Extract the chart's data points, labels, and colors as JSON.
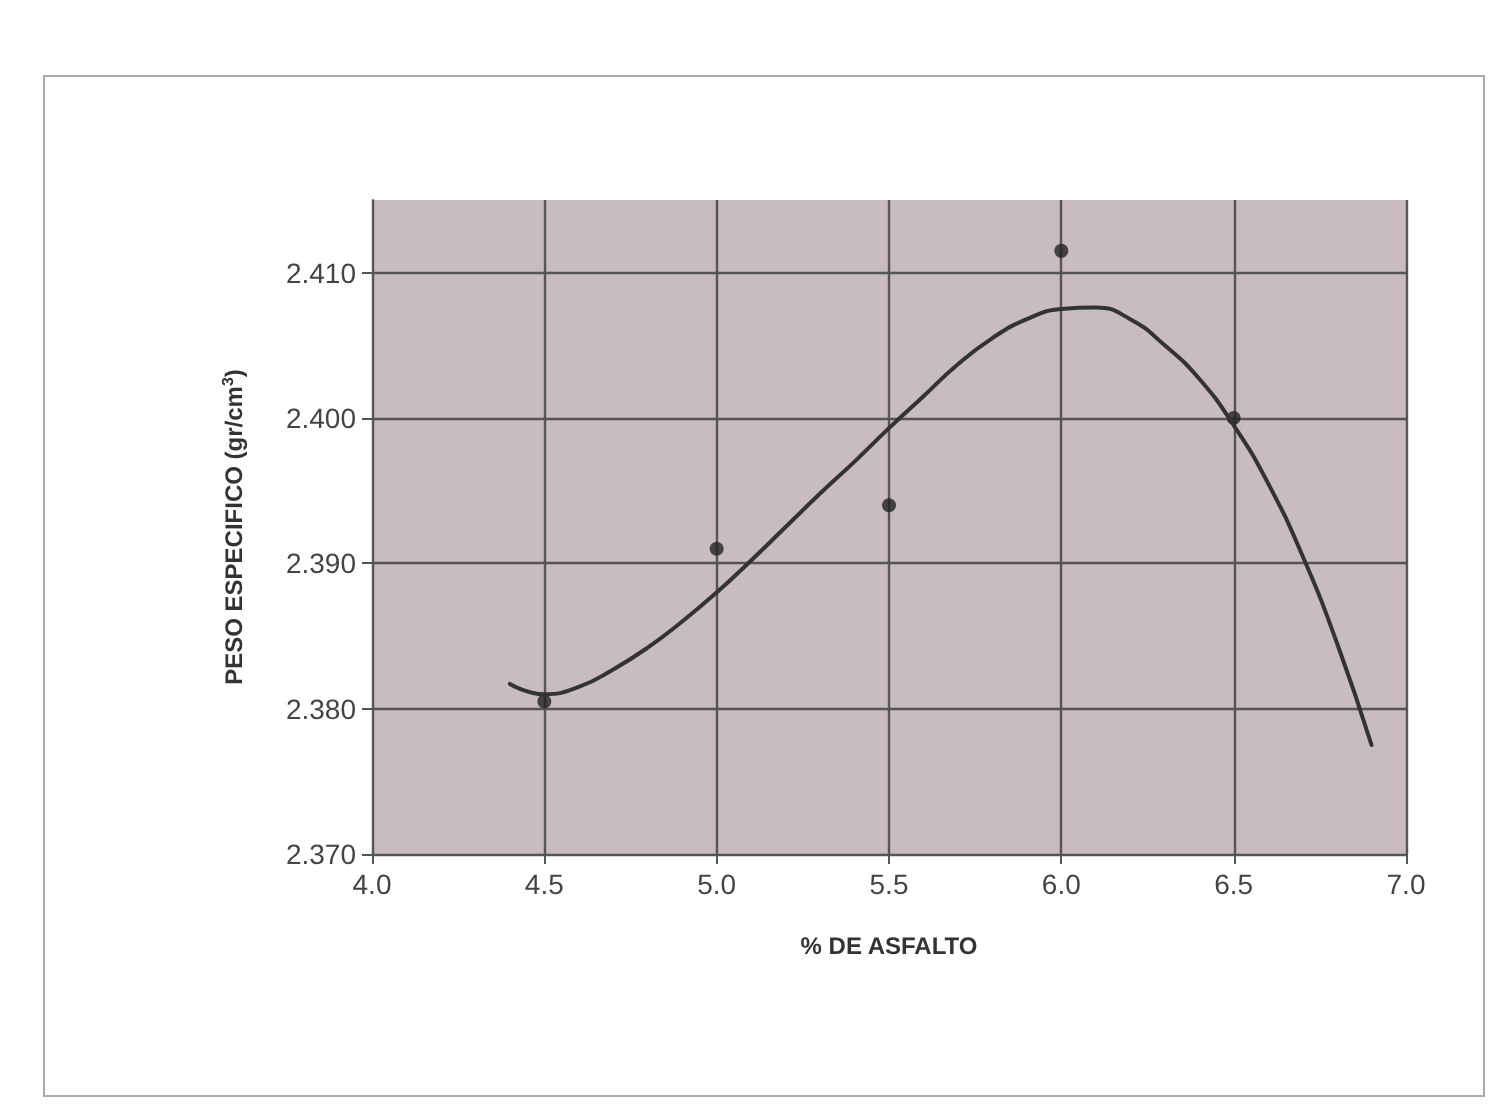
{
  "chart_data": {
    "type": "scatter",
    "xlabel": "% DE ASFALTO",
    "ylabel": "PESO ESPECIFICO (gr/cm$^{3}$)",
    "xlim": [
      4.0,
      7.0
    ],
    "xticks": [
      {
        "value": 4,
        "label": "4.0"
      },
      {
        "value": 4.5,
        "label": "4.5"
      },
      {
        "value": 5,
        "label": "5.0"
      },
      {
        "value": 5.5,
        "label": "5.5"
      },
      {
        "value": 6,
        "label": "6.0"
      },
      {
        "value": 6.5,
        "label": "6.5"
      },
      {
        "value": 7,
        "label": "7.0"
      }
    ],
    "ylim": [
      2.37,
      2.415
    ],
    "yticks": [
      {
        "value": 2.37,
        "label": "2.370"
      },
      {
        "value": 2.38,
        "label": "2.380"
      },
      {
        "value": 2.39,
        "label": "2.390"
      },
      {
        "value": 2.4,
        "label": "2.400"
      },
      {
        "value": 2.41,
        "label": "2.410"
      }
    ],
    "grid": true,
    "marker": "circle",
    "series": [
      {
        "color": "#222222",
        "x": [
          4.5,
          5.0,
          5.5,
          6.0,
          6.5
        ],
        "values": [
          2.3805,
          2.391,
          2.394,
          2.4115,
          2.4
        ]
      },
      {
        "type": "line",
        "color": "#333333",
        "line_style": "solid",
        "marker": "none",
        "x": [
          4.4,
          4.5,
          4.6,
          4.7,
          4.8,
          4.9,
          5.0,
          5.1,
          5.2,
          5.3,
          5.4,
          5.5,
          5.6,
          5.7,
          5.8,
          5.9,
          6.0,
          6.1,
          6.2,
          6.3,
          6.4,
          6.5,
          6.6,
          6.7,
          6.8,
          6.9
        ],
        "values": [
          2.3817,
          2.381,
          2.3815,
          2.3827,
          2.3842,
          2.386,
          2.388,
          2.3902,
          2.3925,
          2.3948,
          2.397,
          2.3993,
          2.4015,
          2.4037,
          2.4055,
          2.4068,
          2.4075,
          2.4076,
          2.4068,
          2.405,
          2.4027,
          2.3995,
          2.3955,
          2.3905,
          2.3845,
          2.3775
        ]
      }
    ]
  }
}
